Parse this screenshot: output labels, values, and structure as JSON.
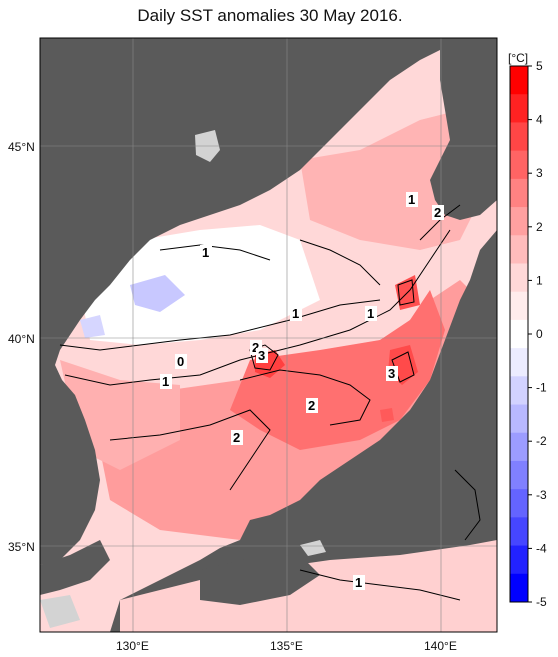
{
  "title": "Daily SST anomalies 30 May 2016.",
  "lat_labels": [
    "45°N",
    "40°N",
    "35°N"
  ],
  "lon_labels": [
    "130°E",
    "135°E",
    "140°E"
  ],
  "colorbar": {
    "unit": "[°C]",
    "ticks": [
      "5",
      "4",
      "3",
      "2",
      "1",
      "0",
      "-1",
      "-2",
      "-3",
      "-4",
      "-5"
    ],
    "colors": {
      "pos": [
        "#ff0000",
        "#ff2222",
        "#ff4646",
        "#ff6464",
        "#ff8282",
        "#ffa0a0",
        "#ffbcbc",
        "#ffd8d8",
        "#ffecec",
        "#ffffff"
      ],
      "neg": [
        "#ffffff",
        "#ececff",
        "#d2d2ff",
        "#b8b8ff",
        "#9c9cff",
        "#8080ff",
        "#6464ff",
        "#4646ff",
        "#2222ff",
        "#0000ff"
      ]
    }
  },
  "contour_labels": [
    "1",
    "1",
    "2",
    "1",
    "1",
    "2",
    "3",
    "0",
    "1",
    "3",
    "2",
    "2",
    "1"
  ],
  "colors": {
    "land": "#5a5a5a",
    "island_light": "#d3d3d3"
  }
}
